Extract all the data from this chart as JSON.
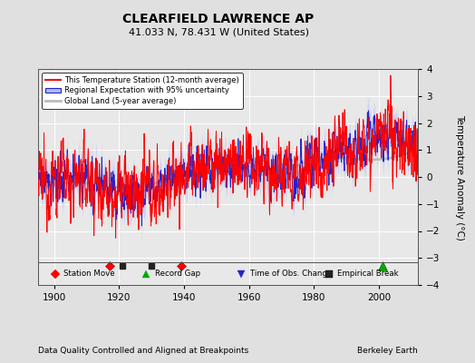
{
  "title": "CLEARFIELD LAWRENCE AP",
  "subtitle": "41.033 N, 78.431 W (United States)",
  "xlabel_note": "Data Quality Controlled and Aligned at Breakpoints",
  "credit": "Berkeley Earth",
  "ylabel": "Temperature Anomaly (°C)",
  "xlim": [
    1895,
    2012
  ],
  "ylim": [
    -4,
    4
  ],
  "yticks": [
    -4,
    -3,
    -2,
    -1,
    0,
    1,
    2,
    3,
    4
  ],
  "xticks": [
    1900,
    1920,
    1940,
    1960,
    1980,
    2000
  ],
  "bg_color": "#e0e0e0",
  "plot_bg_color": "#e8e8e8",
  "station_move_years": [
    1917,
    1939
  ],
  "record_gap_years": [
    2001
  ],
  "obs_change_years": [],
  "empirical_break_years": [
    1921,
    1930
  ],
  "marker_y": -3.3,
  "legend_labels": [
    "This Temperature Station (12-month average)",
    "Regional Expectation with 95% uncertainty",
    "Global Land (5-year average)"
  ]
}
